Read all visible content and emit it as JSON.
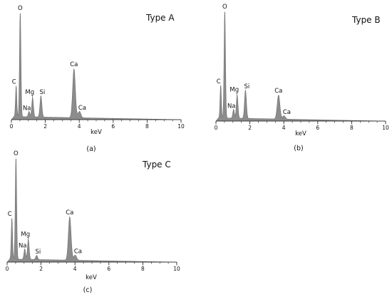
{
  "figure": {
    "background_color": "#ffffff",
    "spectrum_fill": "#8c8c8c",
    "spectrum_stroke": "#6e6e6e",
    "axis_color": "#222222"
  },
  "chart_data": [
    {
      "type": "area",
      "title": "Type A",
      "caption": "(a)",
      "xlabel": "keV",
      "ylabel": "",
      "xlim": [
        0,
        10
      ],
      "ylim": [
        0,
        1.0
      ],
      "x_ticks": [
        "0",
        "2",
        "4",
        "6",
        "8",
        "10"
      ],
      "x_minor_step": 0.5,
      "grid": false,
      "peaks": [
        {
          "label": "C",
          "energy": 0.28,
          "height": 0.29
        },
        {
          "label": "O",
          "energy": 0.52,
          "height": 1.0
        },
        {
          "label": "Na",
          "energy": 1.04,
          "height": 0.05
        },
        {
          "label": "Mg",
          "energy": 1.25,
          "height": 0.18
        },
        {
          "label": "Si",
          "energy": 1.74,
          "height": 0.2
        },
        {
          "label": "Ca",
          "energy": 3.69,
          "height": 0.46
        },
        {
          "label": "Ca",
          "energy": 4.01,
          "height": 0.06
        }
      ],
      "background_level": 0.03
    },
    {
      "type": "area",
      "title": "Type B",
      "caption": "(b)",
      "xlabel": "keV",
      "ylabel": "",
      "xlim": [
        0,
        10
      ],
      "ylim": [
        0,
        1.0
      ],
      "x_ticks": [
        "0",
        "2",
        "4",
        "6",
        "8",
        "10"
      ],
      "x_minor_step": 0.5,
      "grid": false,
      "peaks": [
        {
          "label": "C",
          "energy": 0.28,
          "height": 0.3
        },
        {
          "label": "O",
          "energy": 0.52,
          "height": 1.0
        },
        {
          "label": "Na",
          "energy": 1.04,
          "height": 0.08
        },
        {
          "label": "Mg",
          "energy": 1.25,
          "height": 0.21
        },
        {
          "label": "Si",
          "energy": 1.74,
          "height": 0.26
        },
        {
          "label": "Ca",
          "energy": 3.69,
          "height": 0.22
        },
        {
          "label": "Ca",
          "energy": 4.01,
          "height": 0.03
        }
      ],
      "background_level": 0.03
    },
    {
      "type": "area",
      "title": "Type C",
      "caption": "(c)",
      "xlabel": "keV",
      "ylabel": "",
      "xlim": [
        0,
        10
      ],
      "ylim": [
        0,
        1.0
      ],
      "x_ticks": [
        "0",
        "2",
        "4",
        "6",
        "8",
        "10"
      ],
      "x_minor_step": 0.5,
      "grid": false,
      "peaks": [
        {
          "label": "C",
          "energy": 0.28,
          "height": 0.4
        },
        {
          "label": "O",
          "energy": 0.52,
          "height": 1.0
        },
        {
          "label": "Na",
          "energy": 1.04,
          "height": 0.1
        },
        {
          "label": "Mg",
          "energy": 1.25,
          "height": 0.19
        },
        {
          "label": "Si",
          "energy": 1.74,
          "height": 0.04
        },
        {
          "label": "Ca",
          "energy": 3.69,
          "height": 0.42
        },
        {
          "label": "Ca",
          "energy": 4.01,
          "height": 0.05
        }
      ],
      "background_level": 0.03
    }
  ]
}
